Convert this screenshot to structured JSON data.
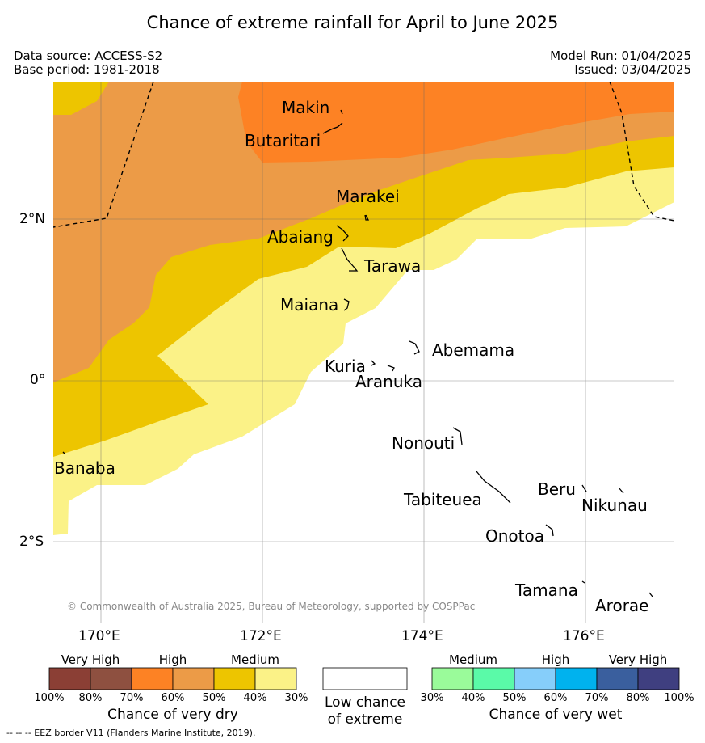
{
  "title": "Chance of extreme rainfall for April to June 2025",
  "data_source": "Data source: ACCESS-S2",
  "base_period": "Base period: 1981-2018",
  "model_run": "Model Run: 01/04/2025",
  "issued": "Issued: 03/04/2025",
  "copyright": "© Commonwealth of Australia 2025, Bureau of Meteorology, supported by COSPPac",
  "axes": {
    "lat_labels": [
      "2°N",
      "0°",
      "2°S"
    ],
    "lon_labels": [
      "170°E",
      "172°E",
      "174°E",
      "176°E"
    ]
  },
  "places": [
    "Makin",
    "Butaritari",
    "Marakei",
    "Abaiang",
    "Tarawa",
    "Maiana",
    "Abemama",
    "Kuria",
    "Aranuka",
    "Banaba",
    "Nonouti",
    "Tabiteuea",
    "Beru",
    "Nikunau",
    "Onotoa",
    "Tamana",
    "Arorae"
  ],
  "legend": {
    "dry": {
      "headers": [
        "Very High",
        "High",
        "Medium"
      ],
      "ticks": [
        "100%",
        "80%",
        "70%",
        "60%",
        "50%",
        "40%",
        "30%"
      ],
      "caption": "Chance of very dry",
      "colors": [
        "#8b3f35",
        "#8e5040",
        "#fd8224",
        "#ec9b47",
        "#edc500",
        "#fbf287"
      ]
    },
    "neutral": {
      "caption_line1": "Low chance",
      "caption_line2": "of extreme",
      "color": "#ffffff"
    },
    "wet": {
      "headers": [
        "Medium",
        "High",
        "Very High"
      ],
      "ticks": [
        "30%",
        "40%",
        "50%",
        "60%",
        "70%",
        "80%",
        "100%"
      ],
      "caption": "Chance of very wet",
      "colors": [
        "#9afb9a",
        "#5afaa8",
        "#86cefa",
        "#00b2ee",
        "#3a5f9e",
        "#3f3f80"
      ]
    }
  },
  "footnote": "-- -- -- EEZ border V11 (Flanders Marine Institute, 2019)."
}
